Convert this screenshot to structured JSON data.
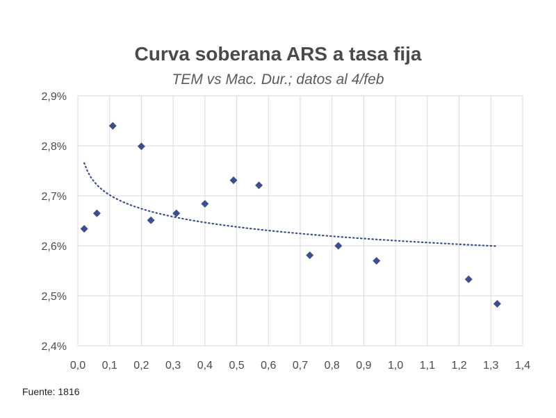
{
  "chart_data": {
    "type": "scatter",
    "title": "Curva soberana ARS a tasa fija",
    "subtitle": "TEM vs Mac. Dur.; datos al 4/feb",
    "xlabel": "",
    "ylabel": "",
    "xlim": [
      0.0,
      1.4
    ],
    "ylim": [
      2.4,
      2.9
    ],
    "x_ticks": [
      "0,0",
      "0,1",
      "0,2",
      "0,3",
      "0,4",
      "0,5",
      "0,6",
      "0,7",
      "0,8",
      "0,9",
      "1,0",
      "1,1",
      "1,2",
      "1,3",
      "1,4"
    ],
    "y_ticks": [
      "2,9%",
      "2,8%",
      "2,7%",
      "2,6%",
      "2,5%",
      "2,4%"
    ],
    "grid": true,
    "marker_color": "#3b4f8f",
    "trendline": {
      "type": "logarithmic",
      "style": "dotted",
      "color": "#3b4f8f",
      "x_range": [
        0.02,
        1.32
      ]
    },
    "points": [
      {
        "x": 0.02,
        "y": 2.634
      },
      {
        "x": 0.06,
        "y": 2.665
      },
      {
        "x": 0.11,
        "y": 2.84
      },
      {
        "x": 0.2,
        "y": 2.799
      },
      {
        "x": 0.23,
        "y": 2.651
      },
      {
        "x": 0.31,
        "y": 2.665
      },
      {
        "x": 0.4,
        "y": 2.684
      },
      {
        "x": 0.49,
        "y": 2.731
      },
      {
        "x": 0.57,
        "y": 2.721
      },
      {
        "x": 0.73,
        "y": 2.581
      },
      {
        "x": 0.82,
        "y": 2.6
      },
      {
        "x": 0.94,
        "y": 2.57
      },
      {
        "x": 1.23,
        "y": 2.533
      },
      {
        "x": 1.32,
        "y": 2.484
      }
    ]
  },
  "footer": {
    "source": "Fuente: 1816"
  }
}
